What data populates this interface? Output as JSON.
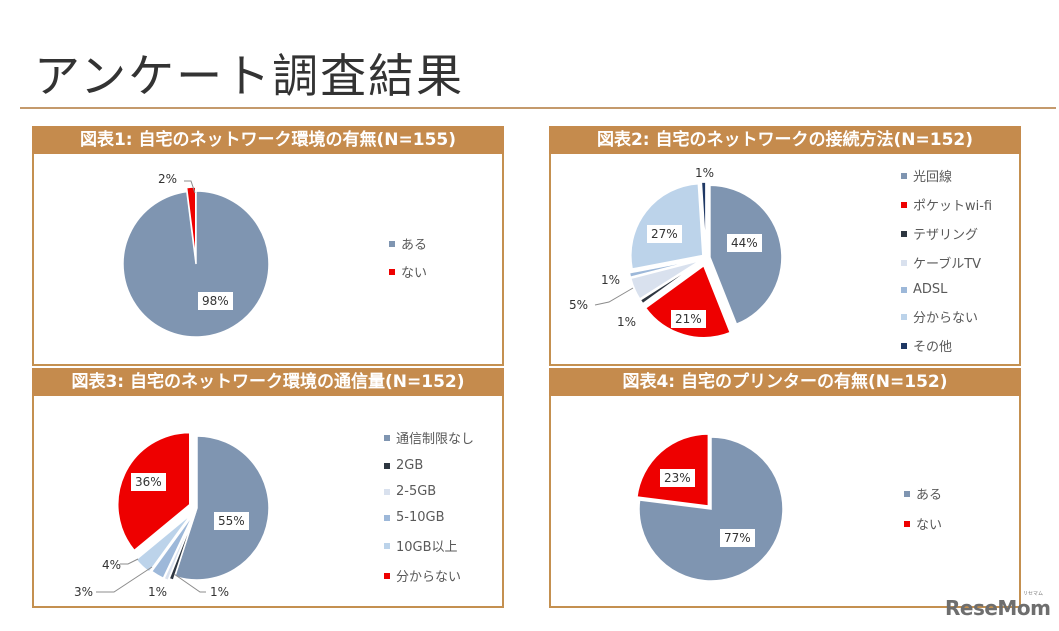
{
  "page": {
    "title": "アンケート調査結果",
    "logo": "ReseMom",
    "logo_ruby": "リセマム"
  },
  "colors": {
    "frame": "#c58b4d",
    "slate": "#7f95b1",
    "red": "#ee0000",
    "dark": "#2e3640",
    "pale": "#d9e1ee",
    "light_blue": "#9db8d9",
    "sky": "#bcd3ea",
    "navy": "#1f3864"
  },
  "chart_data": [
    {
      "type": "pie",
      "title": "図表1: 自宅のネットワーク環境の有無(N=155)",
      "categories": [
        "ある",
        "ない"
      ],
      "values": [
        98,
        2
      ],
      "labels": [
        "98%",
        "2%"
      ],
      "legend_position": "right"
    },
    {
      "type": "pie",
      "title": "図表2: 自宅のネットワークの接続方法(N=152)",
      "categories": [
        "光回線",
        "ポケットwi-fi",
        "テザリング",
        "ケーブルTV",
        "ADSL",
        "分からない",
        "その他"
      ],
      "values": [
        44,
        21,
        1,
        5,
        1,
        27,
        1
      ],
      "labels": [
        "44%",
        "21%",
        "1%",
        "5%",
        "1%",
        "27%",
        "1%"
      ],
      "legend_position": "right"
    },
    {
      "type": "pie",
      "title": "図表3: 自宅のネットワーク環境の通信量(N=152)",
      "categories": [
        "通信制限なし",
        "2GB",
        "2-5GB",
        "5-10GB",
        "10GB以上",
        "分からない"
      ],
      "values": [
        55,
        1,
        1,
        3,
        4,
        36
      ],
      "labels": [
        "55%",
        "1%",
        "1%",
        "3%",
        "4%",
        "36%"
      ],
      "legend_position": "right"
    },
    {
      "type": "pie",
      "title": "図表4: 自宅のプリンターの有無(N=152)",
      "categories": [
        "ある",
        "ない"
      ],
      "values": [
        77,
        23
      ],
      "labels": [
        "77%",
        "23%"
      ],
      "legend_position": "right"
    }
  ]
}
